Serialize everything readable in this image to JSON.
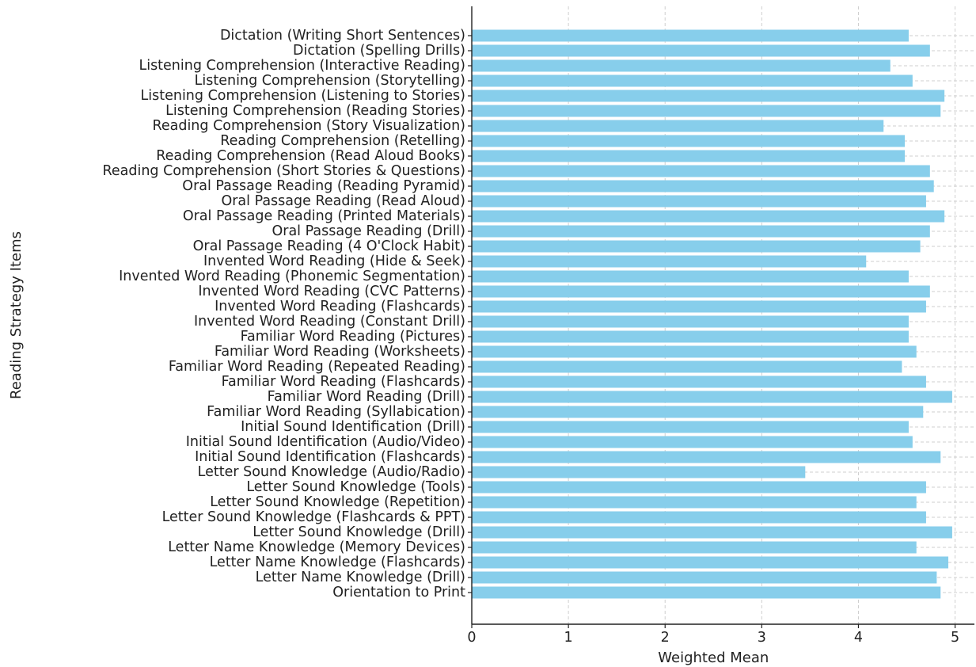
{
  "chart_data": {
    "type": "bar",
    "orientation": "horizontal",
    "xlabel": "Weighted Mean",
    "ylabel": "Reading Strategy Items",
    "xlim": [
      0,
      5.2
    ],
    "x_ticks": [
      0,
      1,
      2,
      3,
      4,
      5
    ],
    "grid": true,
    "bar_color": "#87ceeb",
    "categories": [
      "Orientation to Print",
      "Letter Name Knowledge (Drill)",
      "Letter Name Knowledge (Flashcards)",
      "Letter Name Knowledge (Memory Devices)",
      "Letter Sound Knowledge (Drill)",
      "Letter Sound Knowledge (Flashcards & PPT)",
      "Letter Sound Knowledge (Repetition)",
      "Letter Sound Knowledge (Tools)",
      "Letter Sound Knowledge (Audio/Radio)",
      "Initial Sound Identification (Flashcards)",
      "Initial Sound Identification (Audio/Video)",
      "Initial Sound Identification (Drill)",
      "Familiar Word Reading (Syllabication)",
      "Familiar Word Reading (Drill)",
      "Familiar Word Reading (Flashcards)",
      "Familiar Word Reading (Repeated Reading)",
      "Familiar Word Reading (Worksheets)",
      "Familiar Word Reading (Pictures)",
      "Invented Word Reading (Constant Drill)",
      "Invented Word Reading (Flashcards)",
      "Invented Word Reading (CVC Patterns)",
      "Invented Word Reading (Phonemic Segmentation)",
      "Invented Word Reading (Hide & Seek)",
      "Oral Passage Reading (4 O'Clock Habit)",
      "Oral Passage Reading (Drill)",
      "Oral Passage Reading (Printed Materials)",
      "Oral Passage Reading (Read Aloud)",
      "Oral Passage Reading (Reading Pyramid)",
      "Reading Comprehension (Short Stories & Questions)",
      "Reading Comprehension (Read Aloud Books)",
      "Reading Comprehension (Retelling)",
      "Reading Comprehension (Story Visualization)",
      "Listening Comprehension (Reading Stories)",
      "Listening Comprehension (Listening to Stories)",
      "Listening Comprehension (Storytelling)",
      "Listening Comprehension (Interactive Reading)",
      "Dictation (Spelling Drills)",
      "Dictation (Writing Short Sentences)"
    ],
    "values": [
      4.85,
      4.81,
      4.93,
      4.6,
      4.97,
      4.7,
      4.6,
      4.7,
      3.45,
      4.85,
      4.56,
      4.52,
      4.67,
      4.97,
      4.7,
      4.45,
      4.6,
      4.52,
      4.52,
      4.7,
      4.74,
      4.52,
      4.08,
      4.64,
      4.74,
      4.89,
      4.7,
      4.78,
      4.74,
      4.48,
      4.48,
      4.26,
      4.85,
      4.89,
      4.56,
      4.33,
      4.74,
      4.52
    ]
  }
}
